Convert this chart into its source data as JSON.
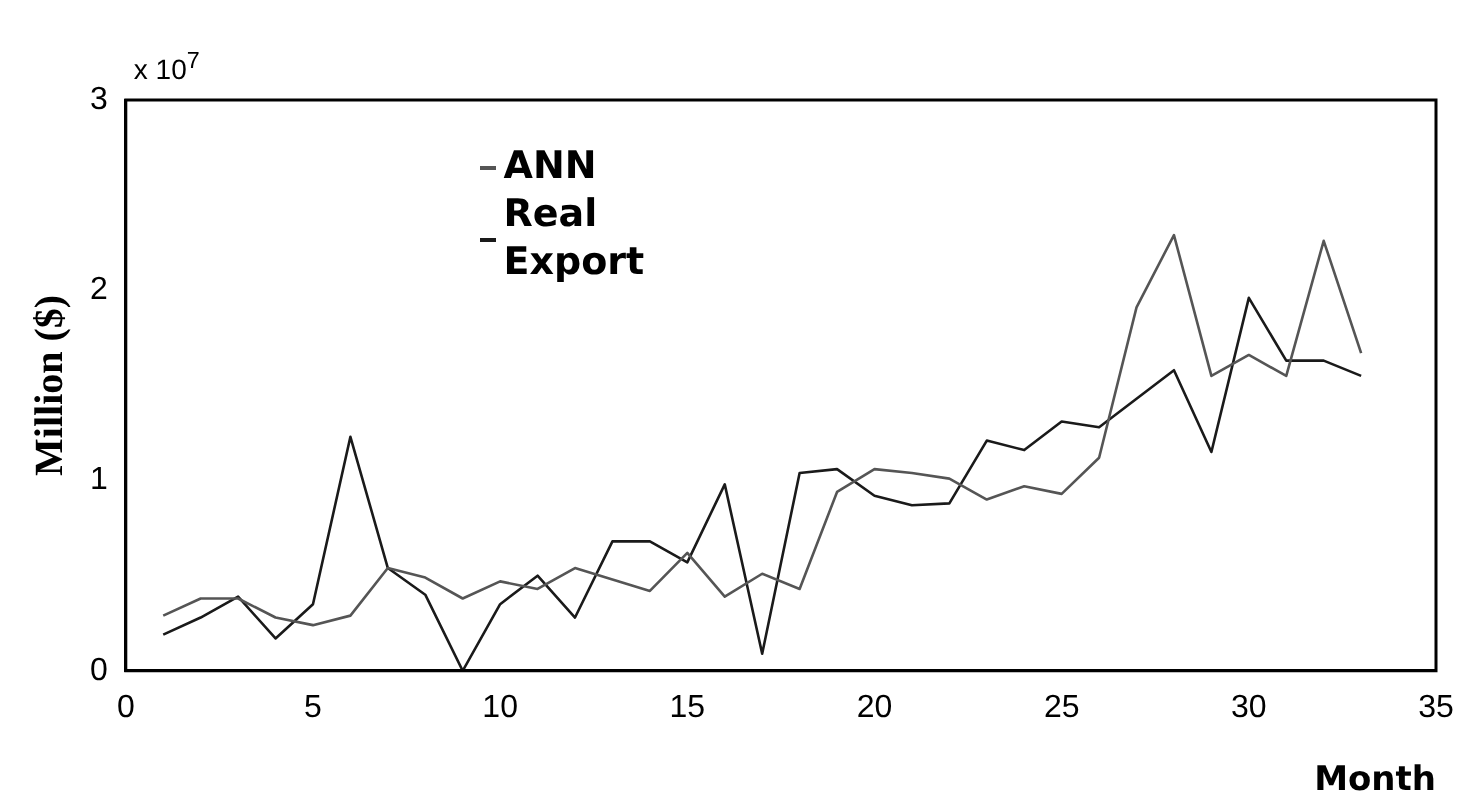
{
  "chart_data": {
    "type": "line",
    "xlabel": "Month",
    "ylabel": "Million ($)",
    "annotations": [
      "x 10$^{7}$"
    ],
    "x": [
      1,
      2,
      3,
      4,
      5,
      6,
      7,
      8,
      9,
      10,
      11,
      12,
      13,
      14,
      15,
      16,
      17,
      18,
      19,
      20,
      21,
      22,
      23,
      24,
      25,
      26,
      27,
      28,
      29,
      30,
      31,
      32,
      33
    ],
    "series": [
      {
        "name": "ANN",
        "color": "#555555",
        "values": [
          0.29,
          0.38,
          0.38,
          0.28,
          0.24,
          0.29,
          0.54,
          0.49,
          0.38,
          0.47,
          0.43,
          0.54,
          0.48,
          0.42,
          0.62,
          0.39,
          0.51,
          0.43,
          0.94,
          1.06,
          1.04,
          1.01,
          0.9,
          0.97,
          0.93,
          1.12,
          1.91,
          2.29,
          1.55,
          1.66,
          1.55,
          2.26,
          1.67
        ]
      },
      {
        "name": "Real Export",
        "color": "#1a1a1a",
        "values": [
          0.19,
          0.28,
          0.39,
          0.17,
          0.35,
          1.23,
          0.54,
          0.4,
          0.0,
          0.35,
          0.5,
          0.28,
          0.68,
          0.68,
          0.57,
          0.98,
          0.09,
          1.04,
          1.06,
          0.92,
          0.87,
          0.88,
          1.21,
          1.16,
          1.31,
          1.28,
          1.43,
          1.58,
          1.15,
          1.96,
          1.63,
          1.63,
          1.55
        ]
      }
    ],
    "xlim": [
      0,
      35
    ],
    "xticks": [
      0,
      5,
      10,
      15,
      20,
      25,
      30,
      35
    ],
    "ylim": [
      0,
      3
    ],
    "yticks": [
      0,
      1,
      2,
      3
    ],
    "grid": false,
    "legend": "top left",
    "marker": "none",
    "line_style": "solid"
  }
}
